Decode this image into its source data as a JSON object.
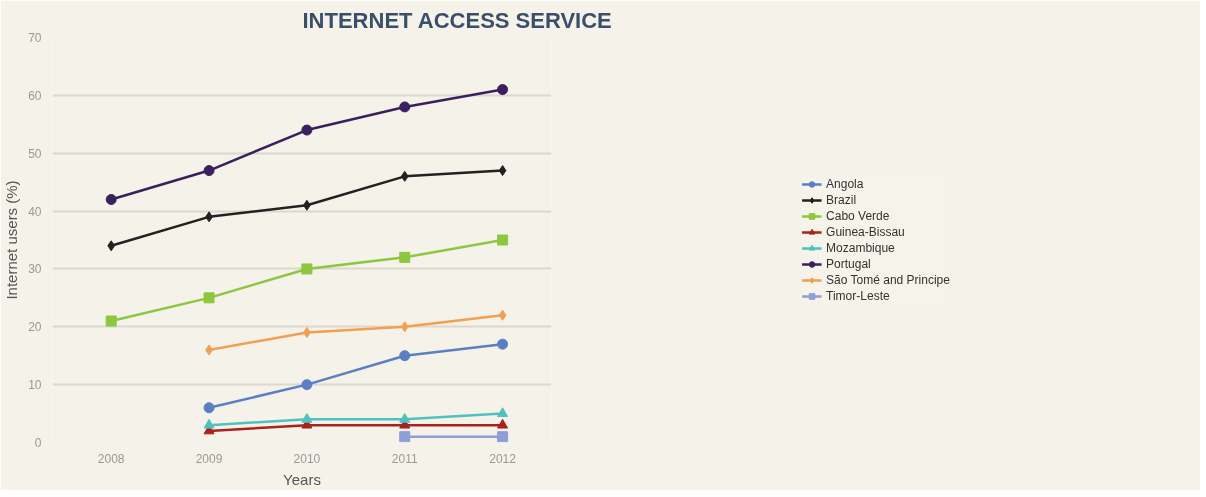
{
  "chart_data": {
    "type": "line",
    "title": "INTERNET ACCESS SERVICE",
    "xlabel": "Years",
    "ylabel": "Internet users (%)",
    "x": [
      2008,
      2009,
      2010,
      2011,
      2012
    ],
    "xlim": [
      2007.4,
      2012.5
    ],
    "xticks": [
      2008,
      2009,
      2010,
      2011,
      2012
    ],
    "ylim": [
      0,
      70
    ],
    "yticks": [
      0,
      10,
      20,
      30,
      40,
      50,
      60,
      70
    ],
    "grid": "y",
    "legend": "right",
    "series": [
      {
        "name": "Angola",
        "color": "#5b7fc4",
        "marker": "circle",
        "values": [
          null,
          6,
          10,
          15,
          17
        ]
      },
      {
        "name": "Brazil",
        "color": "#222222",
        "marker": "diamond",
        "values": [
          34,
          39,
          41,
          46,
          47
        ]
      },
      {
        "name": "Cabo Verde",
        "color": "#8dc63f",
        "marker": "square",
        "values": [
          21,
          25,
          30,
          32,
          35
        ]
      },
      {
        "name": "Guinea-Bissau",
        "color": "#a8231c",
        "marker": "triangle",
        "values": [
          null,
          2,
          3,
          3,
          3
        ]
      },
      {
        "name": "Mozambique",
        "color": "#4fc1c1",
        "marker": "triangle",
        "values": [
          null,
          3,
          4,
          4,
          5
        ]
      },
      {
        "name": "Portugal",
        "color": "#3b2060",
        "marker": "circle",
        "values": [
          42,
          47,
          54,
          58,
          61
        ]
      },
      {
        "name": "São Tomé and Principe",
        "color": "#f0a050",
        "marker": "diamond",
        "values": [
          null,
          16,
          19,
          20,
          22
        ]
      },
      {
        "name": "Timor-Leste",
        "color": "#8f9fd6",
        "marker": "square",
        "values": [
          null,
          null,
          null,
          1,
          1
        ]
      }
    ]
  }
}
